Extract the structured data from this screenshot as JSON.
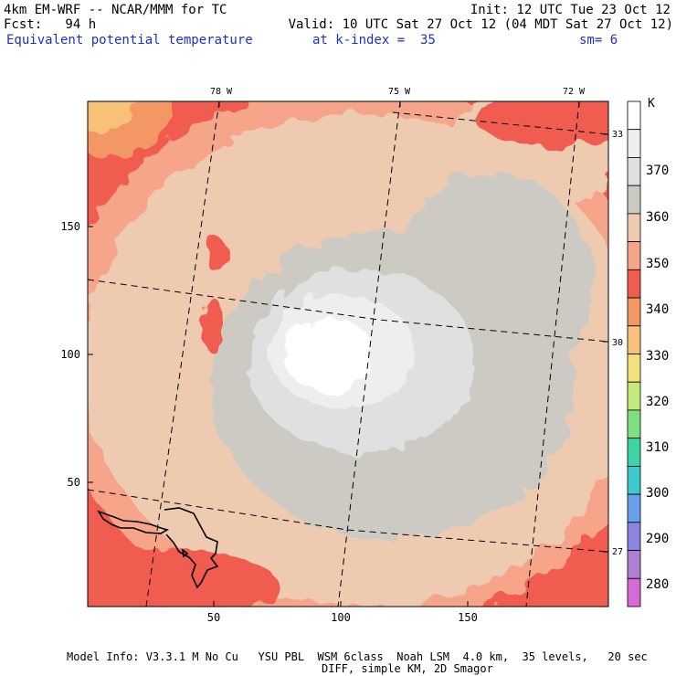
{
  "header": {
    "model": "4km EM-WRF -- NCAR/MMM for TC",
    "init": "Init: 12 UTC Tue 23 Oct 12",
    "fcst": "Fcst:   94 h",
    "valid": "Valid: 10 UTC Sat 27 Oct 12 (04 MDT Sat 27 Oct 12)",
    "field": "Equivalent potential temperature",
    "level": "at k-index =  35",
    "smooth": "sm= 6"
  },
  "map": {
    "x_ticks": [
      "50",
      "100",
      "150"
    ],
    "y_ticks": [
      "50",
      "100",
      "150"
    ],
    "lon_labels": [
      "78 W",
      "75 W",
      "72 W"
    ],
    "lat_labels": [
      "33 N",
      "30 N",
      "27 N"
    ]
  },
  "colorbar": {
    "unit": "K",
    "levels": [
      "370",
      "360",
      "350",
      "340",
      "330",
      "320",
      "310",
      "300",
      "290",
      "280"
    ],
    "colors": [
      "#ffffff",
      "#eeeeee",
      "#e0e0e0",
      "#cdcac3",
      "#eecbb0",
      "#f6a58a",
      "#f05c4f",
      "#f39865",
      "#f7c17a",
      "#f4e07d",
      "#c3ea7a",
      "#7fe07f",
      "#3fd4a6",
      "#3ec9cf",
      "#6a9ff0",
      "#8b84e2",
      "#b07fd3",
      "#d86ad8"
    ]
  },
  "footer": {
    "line1": "Model Info: V3.3.1 M No Cu   YSU PBL  WSM 6class  Noah LSM  4.0 km,  35 levels,   20 sec",
    "line2": "DIFF, simple KM, 2D Smagor"
  }
}
